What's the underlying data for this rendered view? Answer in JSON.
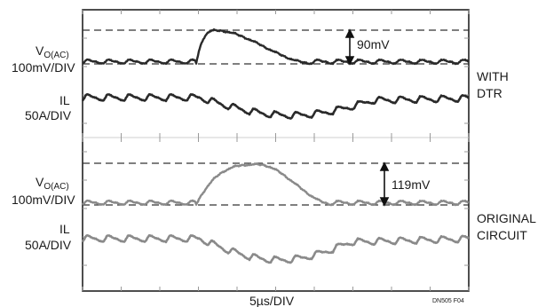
{
  "chart_data": {
    "type": "line",
    "xlabel": "5µs/DIV",
    "figure_code": "DN505 F04",
    "panels": [
      {
        "condition_label": [
          "WITH",
          "DTR"
        ],
        "channels": [
          {
            "label_main": "V",
            "label_sub": "O(AC)",
            "scale": "100mV/DIV",
            "color": "#2a2a2a"
          },
          {
            "label_main": "IL",
            "scale": "50A/DIV",
            "color": "#2a2a2a"
          }
        ],
        "measurement": {
          "label": "90mV",
          "value_mV": 90
        }
      },
      {
        "condition_label": [
          "ORIGINAL",
          "CIRCUIT"
        ],
        "channels": [
          {
            "label_main": "V",
            "label_sub": "O(AC)",
            "scale": "100mV/DIV",
            "color": "#8a8a8a"
          },
          {
            "label_main": "IL",
            "scale": "50A/DIV",
            "color": "#8a8a8a"
          }
        ],
        "measurement": {
          "label": "119mV",
          "value_mV": 119
        }
      }
    ]
  }
}
